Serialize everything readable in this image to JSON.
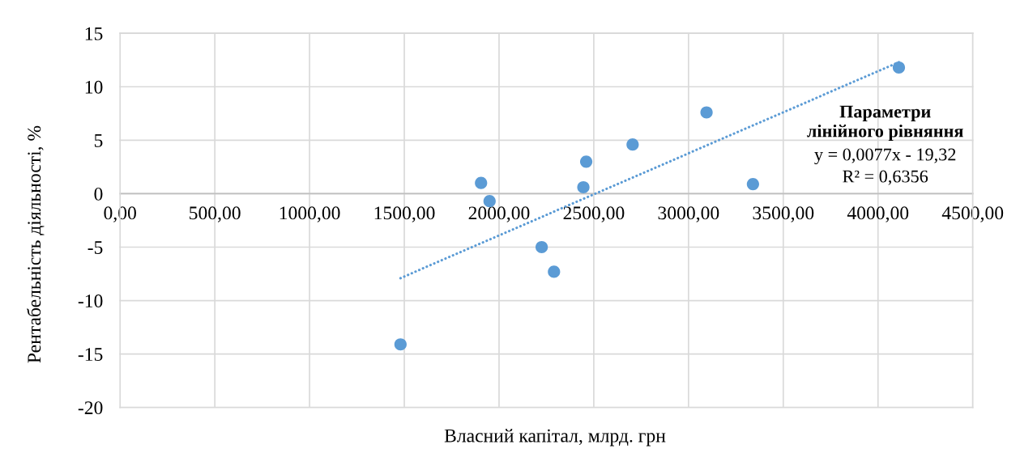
{
  "chart_data": {
    "type": "scatter",
    "xlabel": "Власний капітал, млрд. грн",
    "ylabel": "Рентабельність діяльності, %",
    "xlim": [
      0,
      4500
    ],
    "xticks": [
      {
        "value": 0,
        "label": "0,00"
      },
      {
        "value": 500,
        "label": "500,00"
      },
      {
        "value": 1000,
        "label": "1000,00"
      },
      {
        "value": 1500,
        "label": "1500,00"
      },
      {
        "value": 2000,
        "label": "2000,00"
      },
      {
        "value": 2500,
        "label": "2500,00"
      },
      {
        "value": 3000,
        "label": "3000,00"
      },
      {
        "value": 3500,
        "label": "3500,00"
      },
      {
        "value": 4000,
        "label": "4000,00"
      },
      {
        "value": 4500,
        "label": "4500,00"
      }
    ],
    "ylim": [
      -20,
      15
    ],
    "yticks": [
      -20,
      -15,
      -10,
      -5,
      0,
      5,
      10,
      15
    ],
    "grid": true,
    "marker": "circle",
    "series": [
      {
        "color": "#5b9bd5",
        "x": [
          1905,
          1950,
          4110,
          3095,
          2705,
          2460,
          2445,
          3340,
          2225,
          2290,
          1480
        ],
        "values": [
          1.0,
          -0.7,
          11.8,
          7.6,
          4.6,
          3.0,
          0.6,
          0.9,
          -5.0,
          -7.3,
          -14.1
        ]
      },
      {
        "type": "line",
        "color": "#5b9bd5",
        "line_style": "dotted",
        "marker": "none",
        "x": [
          1480,
          4110
        ],
        "values": [
          -7.9,
          12.3
        ]
      }
    ],
    "annotations": [
      "Параметри\nлінійного рівняння",
      "y = 0,0077x - 19,32",
      "R² = 0,6356"
    ]
  }
}
